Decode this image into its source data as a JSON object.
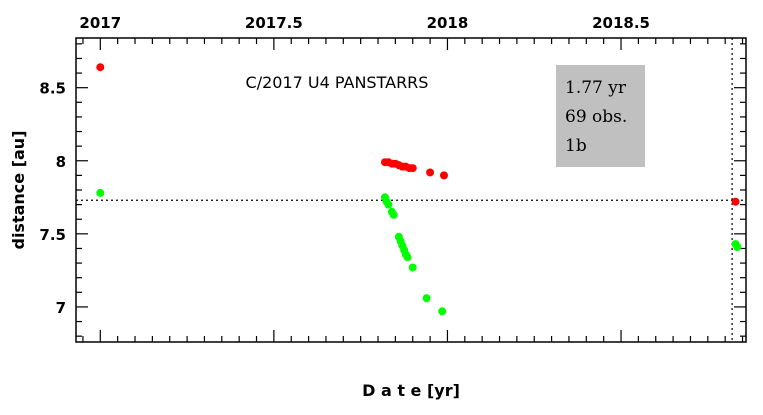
{
  "chart_data": {
    "type": "scatter",
    "title": "C/2017 U4 PANSTARRS",
    "xlabel": "D a t e [yr]",
    "ylabel": "distance [au]",
    "xlim": [
      2016.93,
      2018.86
    ],
    "ylim": [
      6.76,
      8.84
    ],
    "x_ticks": [
      {
        "value": 2017,
        "label": "2017"
      },
      {
        "value": 2017.5,
        "label": "2017.5"
      },
      {
        "value": 2018,
        "label": "2018"
      },
      {
        "value": 2018.5,
        "label": "2018.5"
      }
    ],
    "y_ticks": [
      {
        "value": 7,
        "label": "7"
      },
      {
        "value": 7.5,
        "label": "7.5"
      },
      {
        "value": 8,
        "label": "8"
      },
      {
        "value": 8.5,
        "label": "8.5"
      }
    ],
    "reference_lines": {
      "horizontal_y": 7.73,
      "vertical_x": 2018.82
    },
    "info_box": {
      "lines": [
        "1.77 yr",
        "69 obs.",
        "1b"
      ],
      "color": "#c0c0c0"
    },
    "series": [
      {
        "color": "#ff0000",
        "points": [
          {
            "x": 2017.0,
            "y": 8.64
          },
          {
            "x": 2017.82,
            "y": 7.99
          },
          {
            "x": 2017.83,
            "y": 7.99
          },
          {
            "x": 2017.84,
            "y": 7.98
          },
          {
            "x": 2017.85,
            "y": 7.98
          },
          {
            "x": 2017.86,
            "y": 7.97
          },
          {
            "x": 2017.87,
            "y": 7.96
          },
          {
            "x": 2017.88,
            "y": 7.96
          },
          {
            "x": 2017.89,
            "y": 7.95
          },
          {
            "x": 2017.9,
            "y": 7.95
          },
          {
            "x": 2017.95,
            "y": 7.92
          },
          {
            "x": 2017.99,
            "y": 7.9
          },
          {
            "x": 2018.83,
            "y": 7.72
          }
        ]
      },
      {
        "color": "#00ff00",
        "points": [
          {
            "x": 2017.0,
            "y": 7.78
          },
          {
            "x": 2017.82,
            "y": 7.75
          },
          {
            "x": 2017.825,
            "y": 7.72
          },
          {
            "x": 2017.83,
            "y": 7.7
          },
          {
            "x": 2017.84,
            "y": 7.65
          },
          {
            "x": 2017.845,
            "y": 7.63
          },
          {
            "x": 2017.86,
            "y": 7.48
          },
          {
            "x": 2017.865,
            "y": 7.45
          },
          {
            "x": 2017.87,
            "y": 7.42
          },
          {
            "x": 2017.875,
            "y": 7.39
          },
          {
            "x": 2017.88,
            "y": 7.36
          },
          {
            "x": 2017.885,
            "y": 7.34
          },
          {
            "x": 2017.9,
            "y": 7.27
          },
          {
            "x": 2017.94,
            "y": 7.06
          },
          {
            "x": 2017.985,
            "y": 6.97
          },
          {
            "x": 2018.83,
            "y": 7.43
          },
          {
            "x": 2018.835,
            "y": 7.41
          }
        ]
      }
    ]
  }
}
